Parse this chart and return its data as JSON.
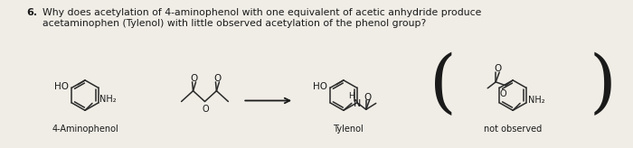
{
  "bg_color": "#f0ede6",
  "text_color": "#1a1a1a",
  "question_number": "6.",
  "question_line1": "Why does acetylation of 4-aminophenol with one equivalent of acetic anhydride produce",
  "question_line2": "acetaminophen (Tylenol) with little observed acetylation of the phenol group?",
  "label_4aminophenol": "4-Aminophenol",
  "label_tylenol": "Tylenol",
  "label_not_observed": "not observed",
  "figsize": [
    7.0,
    1.64
  ],
  "dpi": 100
}
